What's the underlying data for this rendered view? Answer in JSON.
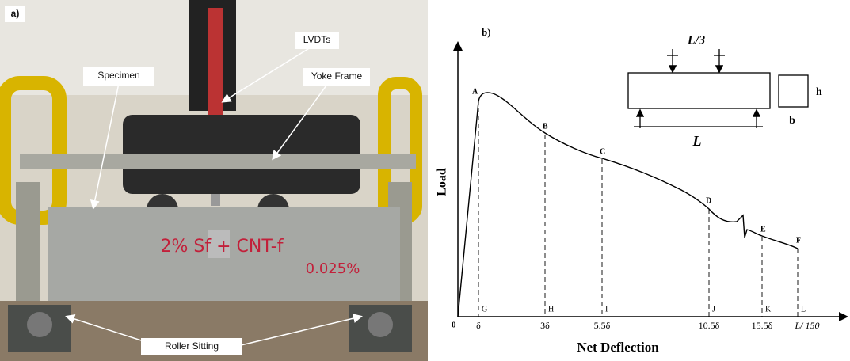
{
  "panel_a": {
    "label": "a)",
    "callouts": [
      "LVDTs",
      "Specimen",
      "Yoke Frame",
      "Roller Sitting"
    ],
    "marking": [
      "2% Sf + CNT-f",
      "0.025%"
    ]
  },
  "panel_b": {
    "label": "b)",
    "y_axis": "Load",
    "x_axis": "Net Deflection",
    "origin": "0",
    "curve_points": [
      "A",
      "B",
      "C",
      "D",
      "E",
      "F"
    ],
    "foot_points": [
      "G",
      "H",
      "I",
      "J",
      "K",
      "L"
    ],
    "x_labels": [
      "δ",
      "3δ",
      "5.5δ",
      "10.5δ",
      "15.5δ",
      "L/ 150"
    ],
    "beam": {
      "load_spacing": "L/3",
      "span": "L",
      "height": "h",
      "width": "b"
    }
  }
}
